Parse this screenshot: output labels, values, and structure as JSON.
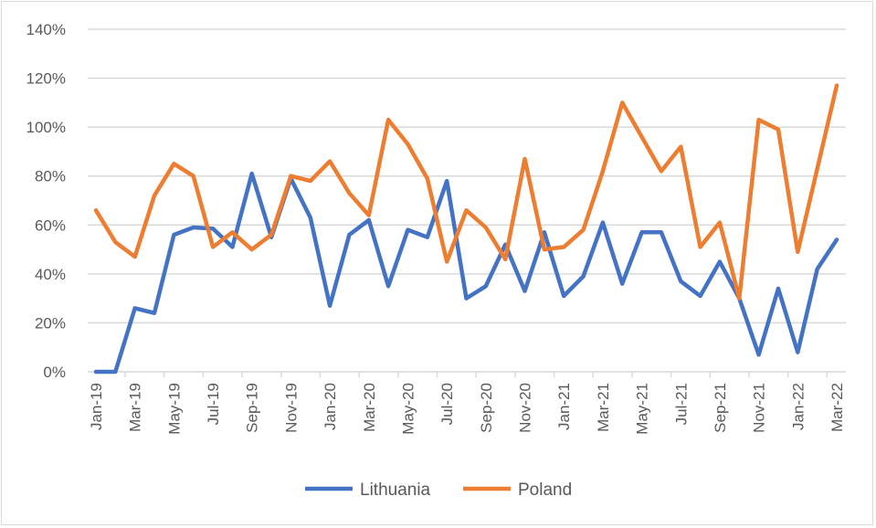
{
  "chart_data": {
    "type": "line",
    "title": "",
    "xlabel": "",
    "ylabel": "",
    "ylim": [
      0,
      140
    ],
    "yticks": [
      "0%",
      "20%",
      "40%",
      "60%",
      "80%",
      "100%",
      "120%",
      "140%"
    ],
    "grid": true,
    "legend_position": "bottom",
    "x": [
      "Jan-19",
      "Feb-19",
      "Mar-19",
      "Apr-19",
      "May-19",
      "Jun-19",
      "Jul-19",
      "Aug-19",
      "Sep-19",
      "Oct-19",
      "Nov-19",
      "Dec-19",
      "Jan-20",
      "Feb-20",
      "Mar-20",
      "Apr-20",
      "May-20",
      "Jun-20",
      "Jul-20",
      "Aug-20",
      "Sep-20",
      "Oct-20",
      "Nov-20",
      "Dec-20",
      "Jan-21",
      "Feb-21",
      "Mar-21",
      "Apr-21",
      "May-21",
      "Jun-21",
      "Jul-21",
      "Aug-21",
      "Sep-21",
      "Oct-21",
      "Nov-21",
      "Dec-21",
      "Jan-22",
      "Feb-22",
      "Mar-22"
    ],
    "xtick_labels": [
      "Jan-19",
      "Mar-19",
      "May-19",
      "Jul-19",
      "Sep-19",
      "Nov-19",
      "Jan-20",
      "Mar-20",
      "May-20",
      "Jul-20",
      "Sep-20",
      "Nov-20",
      "Jan-21",
      "Mar-21",
      "May-21",
      "Jul-21",
      "Sep-21",
      "Nov-21",
      "Jan-22",
      "Mar-22"
    ],
    "series": [
      {
        "name": "Lithuania",
        "color": "#4472C4",
        "values": [
          0,
          0,
          26,
          24,
          56,
          59,
          58.5,
          51,
          81,
          55,
          79,
          63,
          27,
          56,
          62,
          35,
          58,
          55,
          78,
          30,
          35,
          52,
          33,
          57,
          31,
          39,
          61,
          36,
          57,
          57,
          37,
          31,
          45,
          30,
          7,
          34,
          8,
          42,
          54
        ]
      },
      {
        "name": "Poland",
        "color": "#ED7D31",
        "values": [
          66,
          53,
          47,
          72,
          85,
          80,
          51,
          57,
          50,
          56,
          80,
          78,
          86,
          73,
          64,
          103,
          93,
          79,
          45,
          66,
          59,
          46,
          87,
          50,
          51,
          58,
          82,
          110,
          96,
          82,
          92,
          51,
          61,
          30,
          103,
          99,
          49,
          83,
          117
        ]
      }
    ]
  }
}
